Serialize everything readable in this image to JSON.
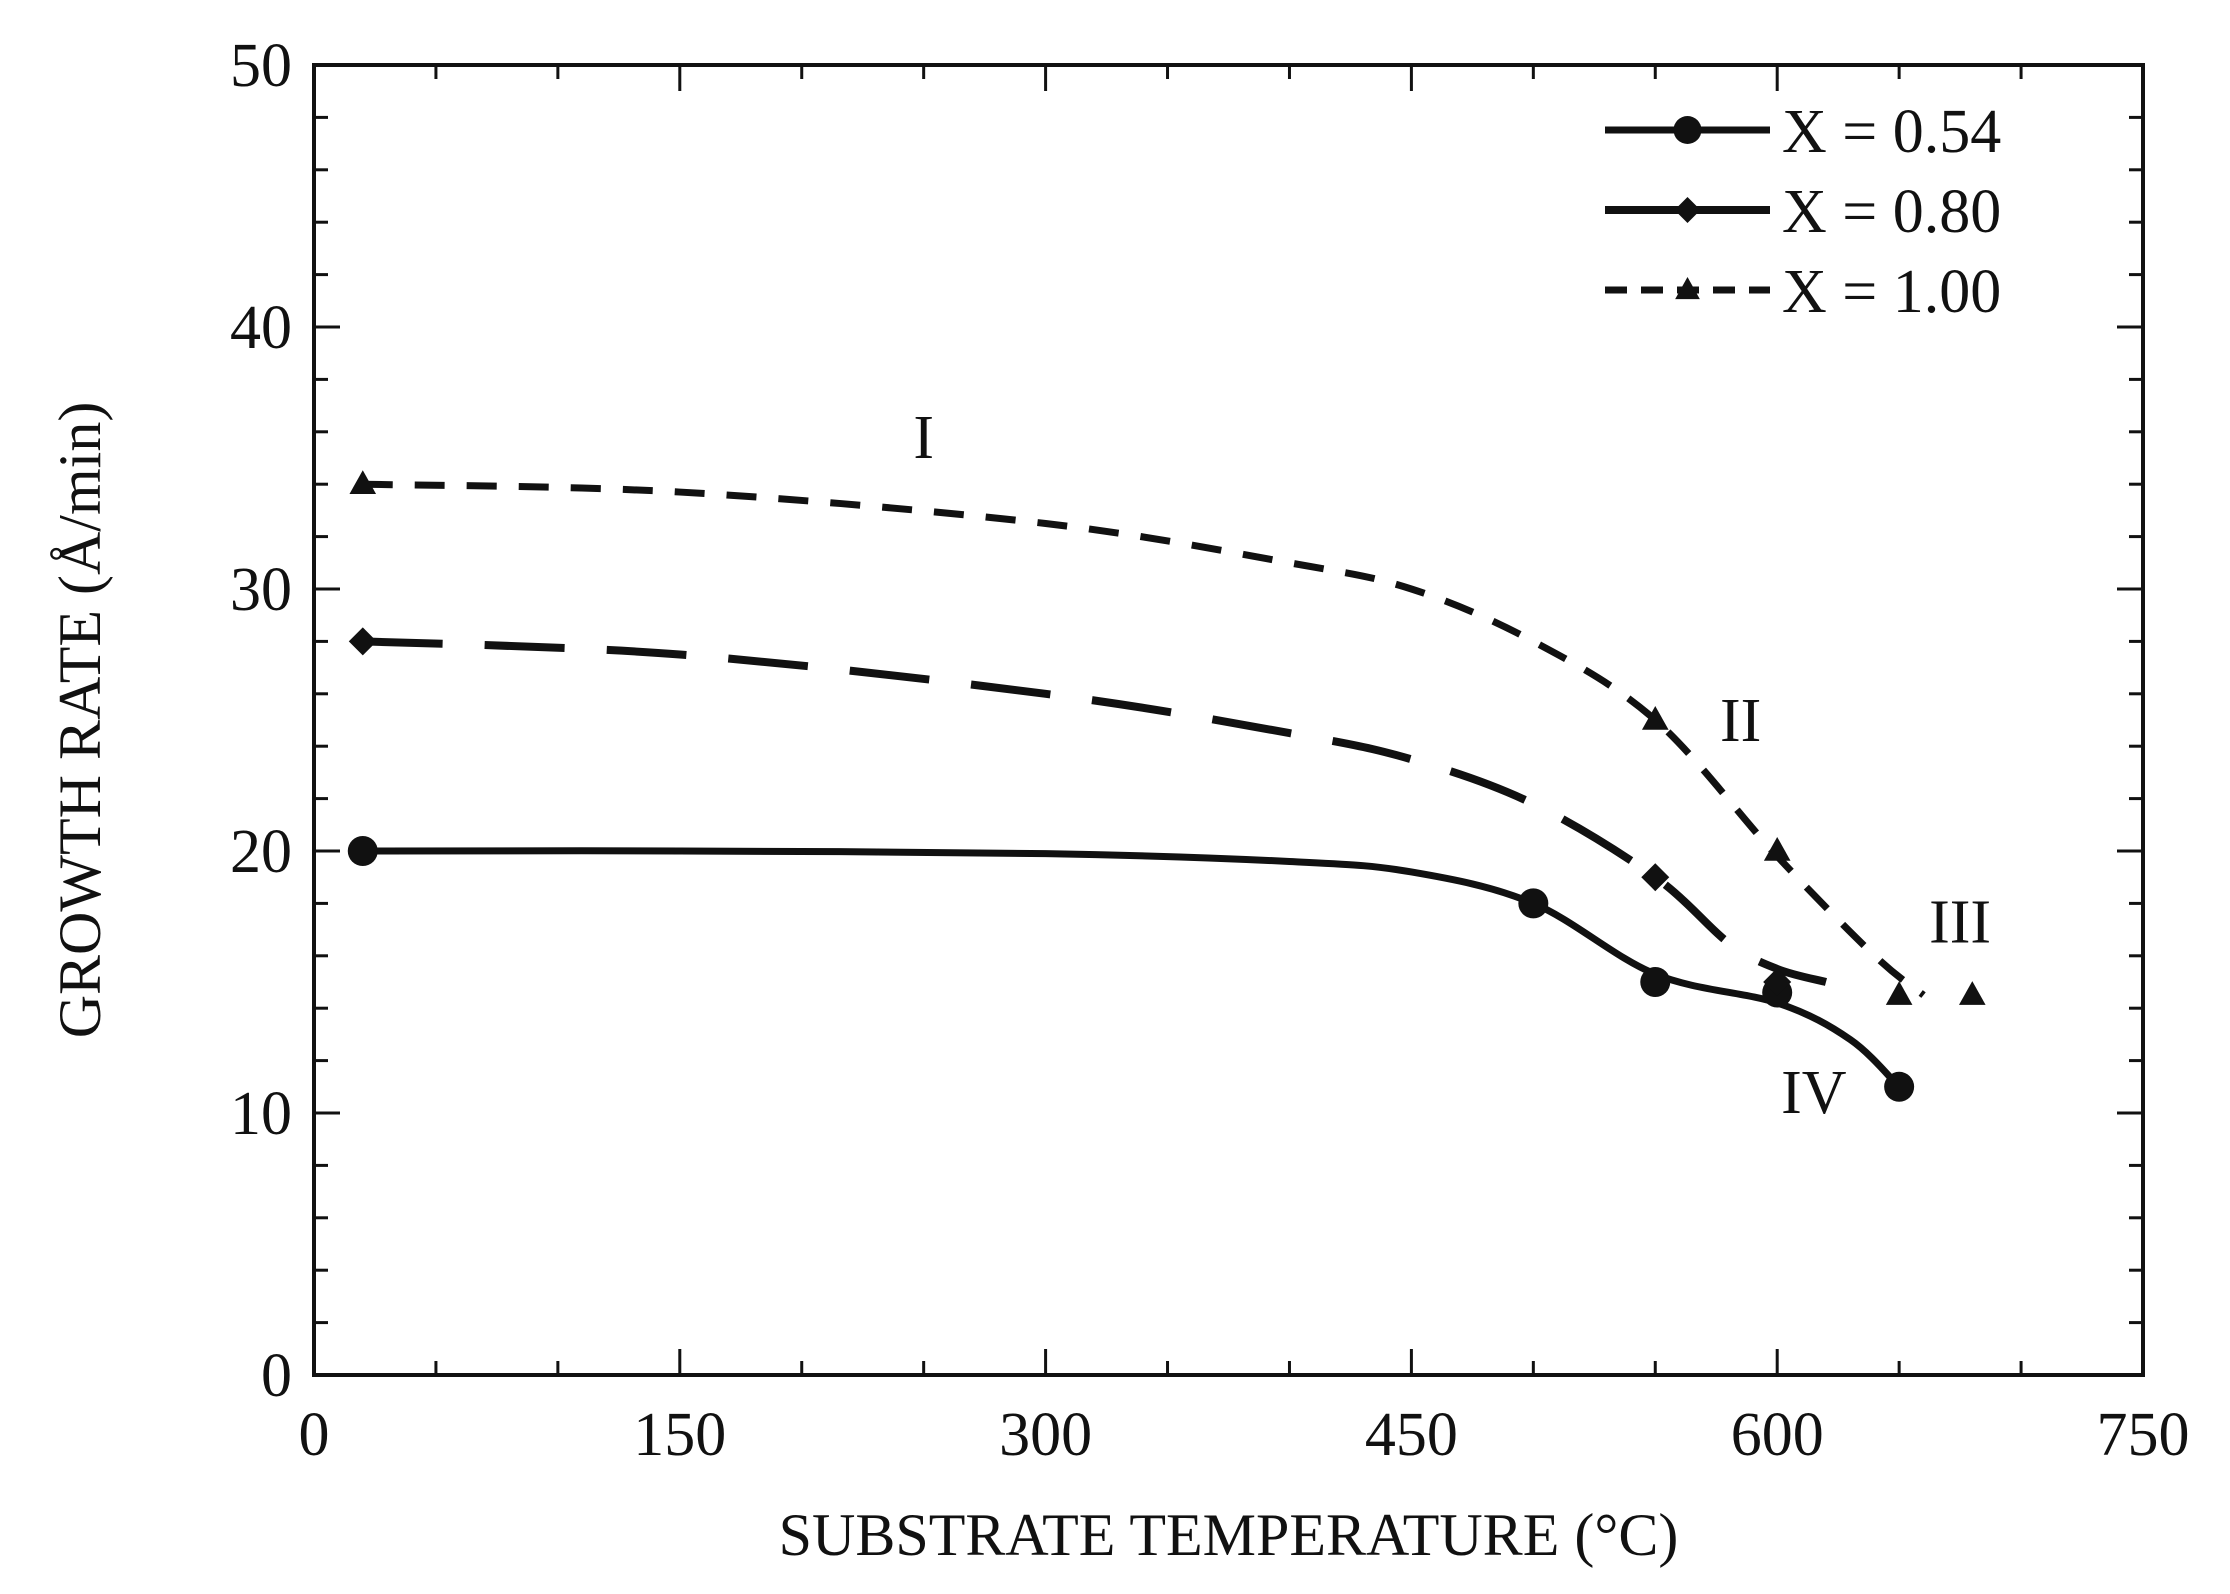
{
  "chart_data": {
    "type": "line",
    "xlabel": "SUBSTRATE TEMPERATURE (°C)",
    "ylabel": "GROWTH RATE (Å/min)",
    "xlim": [
      0,
      750
    ],
    "ylim": [
      0,
      50
    ],
    "x_ticks": [
      0,
      150,
      300,
      450,
      600,
      750
    ],
    "y_ticks": [
      0,
      10,
      20,
      30,
      40,
      50
    ],
    "x_tick_labels": [
      "0",
      "150",
      "300",
      "450",
      "600",
      "750"
    ],
    "y_tick_labels": [
      "0",
      "10",
      "20",
      "30",
      "40",
      "50"
    ],
    "grid": false,
    "legend_position": "top-right",
    "series": [
      {
        "name": "X = 0.54",
        "marker": "circle",
        "line_style": "solid",
        "points": [
          [
            20,
            20.0
          ],
          [
            500,
            18.0
          ],
          [
            550,
            15.0
          ],
          [
            600,
            14.6
          ],
          [
            650,
            11.0
          ]
        ],
        "curve": [
          [
            20,
            20.0
          ],
          [
            150,
            20.0
          ],
          [
            300,
            19.9
          ],
          [
            400,
            19.6
          ],
          [
            450,
            19.2
          ],
          [
            500,
            18.0
          ],
          [
            550,
            15.3
          ],
          [
            600,
            14.2
          ],
          [
            630,
            12.8
          ],
          [
            650,
            11.0
          ]
        ]
      },
      {
        "name": "X = 0.80",
        "marker": "diamond",
        "line_style": "long-dash",
        "points": [
          [
            20,
            28.0
          ],
          [
            550,
            19.0
          ],
          [
            600,
            15.0
          ]
        ],
        "curve": [
          [
            20,
            28.0
          ],
          [
            150,
            27.5
          ],
          [
            300,
            26.0
          ],
          [
            400,
            24.5
          ],
          [
            450,
            23.5
          ],
          [
            500,
            21.8
          ],
          [
            550,
            19.0
          ],
          [
            580,
            16.5
          ],
          [
            600,
            15.5
          ],
          [
            620,
            15.0
          ]
        ]
      },
      {
        "name": "X = 1.00",
        "marker": "triangle",
        "line_style": "short-dash",
        "points": [
          [
            20,
            34.0
          ],
          [
            550,
            25.0
          ],
          [
            600,
            20.0
          ],
          [
            650,
            14.5
          ],
          [
            680,
            14.5
          ]
        ],
        "curve": [
          [
            20,
            34.0
          ],
          [
            150,
            33.7
          ],
          [
            300,
            32.5
          ],
          [
            400,
            31.0
          ],
          [
            450,
            30.0
          ],
          [
            500,
            28.0
          ],
          [
            550,
            25.0
          ],
          [
            600,
            19.8
          ],
          [
            640,
            16.0
          ],
          [
            660,
            14.5
          ]
        ]
      }
    ],
    "annotations": [
      {
        "text": "I",
        "x": 250,
        "y": 35.0
      },
      {
        "text": "II",
        "x": 585,
        "y": 24.2
      },
      {
        "text": "III",
        "x": 675,
        "y": 16.5
      },
      {
        "text": "IV",
        "x": 615,
        "y": 10.0
      }
    ]
  }
}
